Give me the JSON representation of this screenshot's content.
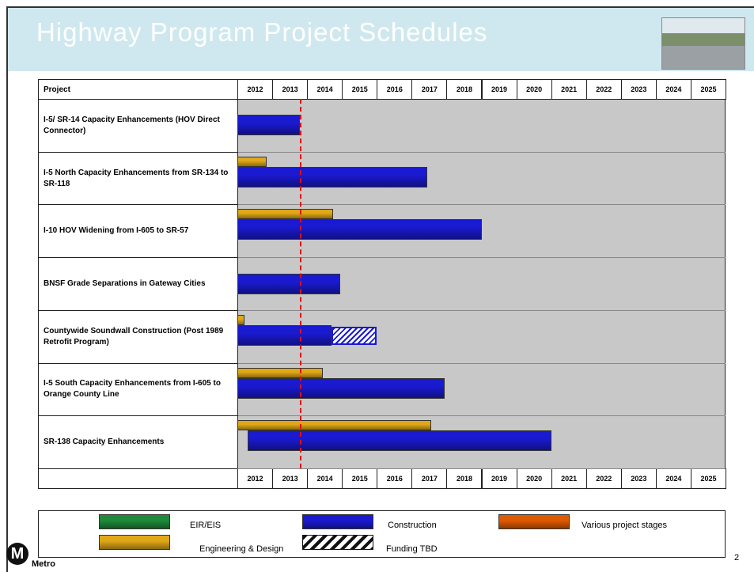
{
  "title": "Highway Program Project Schedules",
  "table": {
    "header": "Project",
    "years": [
      2012,
      2013,
      2014,
      2015,
      2016,
      2017,
      2018,
      2019,
      2020,
      2021,
      2022,
      2023,
      2024,
      2025
    ],
    "today_marker": 2013.8,
    "rows": [
      {
        "project": "I-5/ SR-14 Capacity Enhancements (HOV Direct Connector)",
        "engineering": null,
        "construction": [
          2012,
          2013.8
        ],
        "funding_tbd": null
      },
      {
        "project": "I-5 North Capacity Enhancements from SR-134 to SR-118",
        "engineering": [
          2012,
          2012.85
        ],
        "construction": [
          2012,
          2017.45
        ],
        "funding_tbd": null
      },
      {
        "project": "I-10 HOV Widening from I-605 to SR-57",
        "engineering": [
          2012,
          2014.75
        ],
        "construction": [
          2012,
          2019
        ],
        "funding_tbd": null
      },
      {
        "project": "BNSF Grade Separations in Gateway Cities",
        "engineering": null,
        "construction": [
          2012,
          2014.95
        ],
        "funding_tbd": null
      },
      {
        "project": "Countywide Soundwall Construction (Post 1989 Retrofit Program)",
        "engineering": [
          2012,
          2012.2
        ],
        "construction": [
          2012,
          2014.7
        ],
        "funding_tbd": [
          2014.7,
          2016
        ]
      },
      {
        "project": "I-5 South Capacity Enhancements from I-605 to Orange County Line",
        "engineering": [
          2012,
          2014.45
        ],
        "construction": [
          2012,
          2017.95
        ],
        "funding_tbd": null
      },
      {
        "project": "SR-138 Capacity Enhancements",
        "engineering": [
          2012,
          2017.55
        ],
        "construction": [
          2012.3,
          2021
        ],
        "funding_tbd": null
      }
    ]
  },
  "legend": [
    {
      "label": "EIR/EIS",
      "color": "#1e8a3a"
    },
    {
      "label": "Construction",
      "color": "#1a1ad0"
    },
    {
      "label": "Various project stages",
      "color": "#e05a00"
    },
    {
      "label": "Engineering & Design",
      "color": "#e0a818"
    },
    {
      "label": "Funding TBD"
    }
  ],
  "footer": {
    "logo": "Metro",
    "page": "2"
  }
}
